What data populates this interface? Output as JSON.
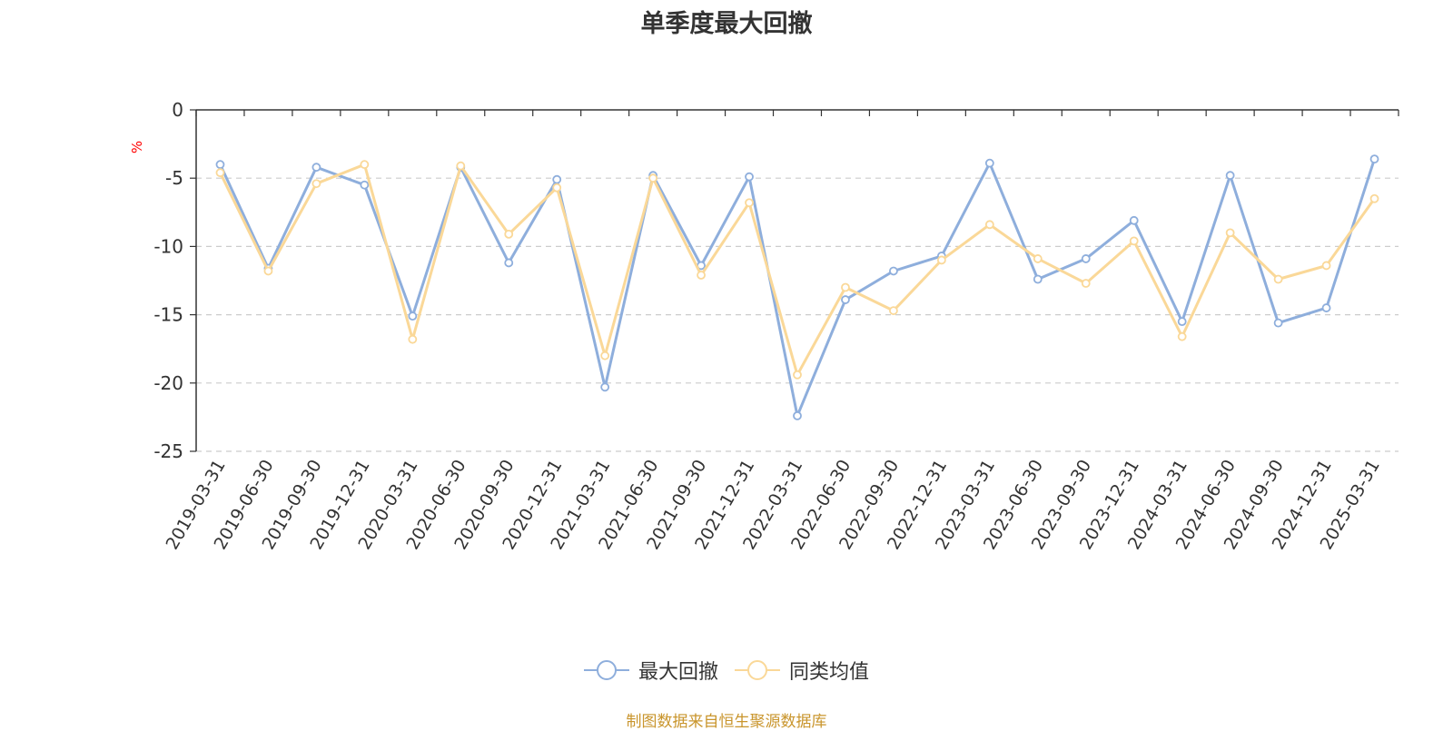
{
  "title": "单季度最大回撤",
  "source_note": "制图数据来自恒生聚源数据库",
  "chart_data": {
    "type": "line",
    "title": "单季度最大回撤",
    "xlabel": "",
    "ylabel": "%",
    "ylim": [
      -25,
      0
    ],
    "yticks": [
      0,
      -5,
      -10,
      -15,
      -20,
      -25
    ],
    "grid": "horizontal dashed",
    "legend_position": "bottom-center",
    "categories": [
      "2019-03-31",
      "2019-06-30",
      "2019-09-30",
      "2019-12-31",
      "2020-03-31",
      "2020-06-30",
      "2020-09-30",
      "2020-12-31",
      "2021-03-31",
      "2021-06-30",
      "2021-09-30",
      "2021-12-31",
      "2022-03-31",
      "2022-06-30",
      "2022-09-30",
      "2022-12-31",
      "2023-03-31",
      "2023-06-30",
      "2023-09-30",
      "2023-12-31",
      "2024-03-31",
      "2024-06-30",
      "2024-09-30",
      "2024-12-31",
      "2025-03-31"
    ],
    "series": [
      {
        "name": "最大回撤",
        "color": "#8eaedc",
        "values": [
          -4.0,
          -11.6,
          -4.2,
          -5.5,
          -15.1,
          -4.2,
          -11.2,
          -5.1,
          -20.3,
          -4.8,
          -11.4,
          -4.9,
          -22.4,
          -13.9,
          -11.8,
          -10.7,
          -3.9,
          -12.4,
          -10.9,
          -8.1,
          -15.5,
          -4.8,
          -15.6,
          -14.5,
          -3.6
        ]
      },
      {
        "name": "同类均值",
        "color": "#fad898",
        "values": [
          -4.6,
          -11.8,
          -5.4,
          -4.0,
          -16.8,
          -4.1,
          -9.1,
          -5.7,
          -18.0,
          -5.0,
          -12.1,
          -6.8,
          -19.4,
          -13.0,
          -14.7,
          -11.0,
          -8.4,
          -10.9,
          -12.7,
          -9.6,
          -16.6,
          -9.0,
          -12.4,
          -11.4,
          -6.5
        ]
      }
    ]
  }
}
